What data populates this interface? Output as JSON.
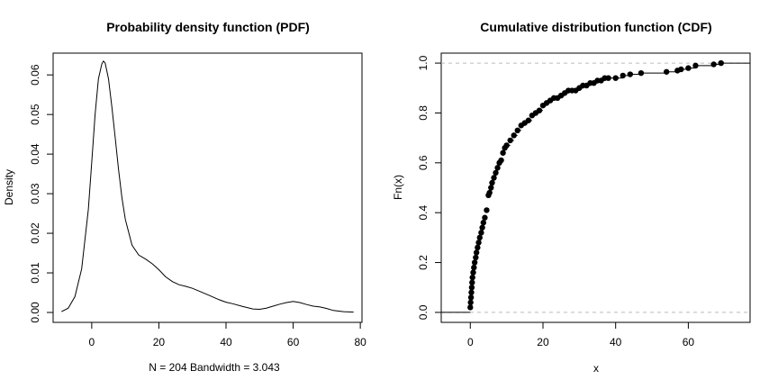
{
  "chart_data": [
    {
      "type": "line",
      "title": "Probability density function (PDF)",
      "xlabel": "N = 204   Bandwidth = 3.043",
      "ylabel": "Density",
      "xlim": [
        -11.5,
        80.5
      ],
      "ylim": [
        -0.0025,
        0.0655
      ],
      "xticks": [
        0,
        20,
        40,
        60,
        80
      ],
      "yticks": [
        0.0,
        0.01,
        0.02,
        0.03,
        0.04,
        0.05,
        0.06
      ],
      "ytick_labels": [
        "0.00",
        "0.01",
        "0.02",
        "0.03",
        "0.04",
        "0.05",
        "0.06"
      ],
      "series": [
        {
          "x": [
            -9,
            -7,
            -5,
            -3,
            -1,
            0,
            1,
            2,
            3,
            3.5,
            4,
            5,
            6,
            7,
            8,
            9,
            10,
            12,
            14,
            16,
            18,
            20,
            22,
            24,
            26,
            28,
            30,
            32,
            35,
            38,
            40,
            42,
            45,
            48,
            50,
            52,
            54,
            56,
            58,
            60,
            62,
            64,
            66,
            68,
            70,
            72,
            75,
            78
          ],
          "y": [
            0.0002,
            0.0011,
            0.004,
            0.011,
            0.026,
            0.038,
            0.05,
            0.059,
            0.0628,
            0.0635,
            0.063,
            0.059,
            0.052,
            0.044,
            0.036,
            0.029,
            0.0235,
            0.017,
            0.0145,
            0.0135,
            0.0123,
            0.0108,
            0.009,
            0.0078,
            0.007,
            0.0066,
            0.0061,
            0.0054,
            0.0043,
            0.0032,
            0.0026,
            0.0022,
            0.0015,
            0.0009,
            0.0008,
            0.0011,
            0.0016,
            0.0021,
            0.0025,
            0.0028,
            0.0025,
            0.002,
            0.0016,
            0.0014,
            0.001,
            0.0005,
            0.0002,
            0.0001
          ]
        }
      ]
    },
    {
      "type": "scatter",
      "title": "Cumulative distribution function (CDF)",
      "xlabel": "x",
      "ylabel": "Fn(x)",
      "xlim": [
        -8,
        77
      ],
      "ylim": [
        -0.04,
        1.04
      ],
      "xticks": [
        0,
        20,
        40,
        60
      ],
      "yticks": [
        0.0,
        0.2,
        0.4,
        0.6,
        0.8,
        1.0
      ],
      "ytick_labels": [
        "0.0",
        "0.2",
        "0.4",
        "0.6",
        "0.8",
        "1.0"
      ],
      "hlines": [
        0,
        1
      ],
      "series": [
        {
          "x": [
            0.0,
            0.1,
            0.2,
            0.3,
            0.4,
            0.5,
            0.6,
            0.8,
            1.0,
            1.2,
            1.5,
            1.7,
            2.0,
            2.3,
            2.6,
            3.0,
            3.3,
            3.6,
            4.0,
            4.5,
            5.0,
            5.3,
            5.7,
            6.0,
            6.5,
            7.0,
            7.5,
            8.0,
            8.5,
            9.0,
            9.5,
            10.0,
            11.0,
            12.0,
            13.0,
            14.0,
            15.0,
            16.0,
            17.0,
            18.0,
            19.0,
            20.0,
            21.0,
            22.0,
            23.0,
            24.0,
            25.0,
            26.0,
            27.0,
            28.0,
            29.0,
            30.0,
            31.0,
            32.0,
            33.0,
            34.0,
            35.0,
            36.0,
            37.0,
            38.0,
            40.0,
            42.0,
            44.0,
            47.0,
            54.0,
            57.0,
            58.0,
            60.0,
            62.0,
            67.0,
            69.0
          ],
          "y": [
            0.02,
            0.04,
            0.06,
            0.08,
            0.1,
            0.12,
            0.14,
            0.16,
            0.18,
            0.2,
            0.22,
            0.24,
            0.26,
            0.28,
            0.3,
            0.32,
            0.34,
            0.36,
            0.38,
            0.41,
            0.47,
            0.48,
            0.5,
            0.52,
            0.54,
            0.56,
            0.58,
            0.6,
            0.61,
            0.64,
            0.66,
            0.67,
            0.69,
            0.71,
            0.73,
            0.75,
            0.76,
            0.77,
            0.79,
            0.8,
            0.81,
            0.83,
            0.84,
            0.85,
            0.86,
            0.86,
            0.87,
            0.88,
            0.89,
            0.89,
            0.89,
            0.9,
            0.91,
            0.91,
            0.92,
            0.92,
            0.93,
            0.93,
            0.94,
            0.94,
            0.94,
            0.95,
            0.955,
            0.96,
            0.965,
            0.97,
            0.975,
            0.98,
            0.99,
            0.995,
            1.0
          ]
        }
      ]
    }
  ]
}
